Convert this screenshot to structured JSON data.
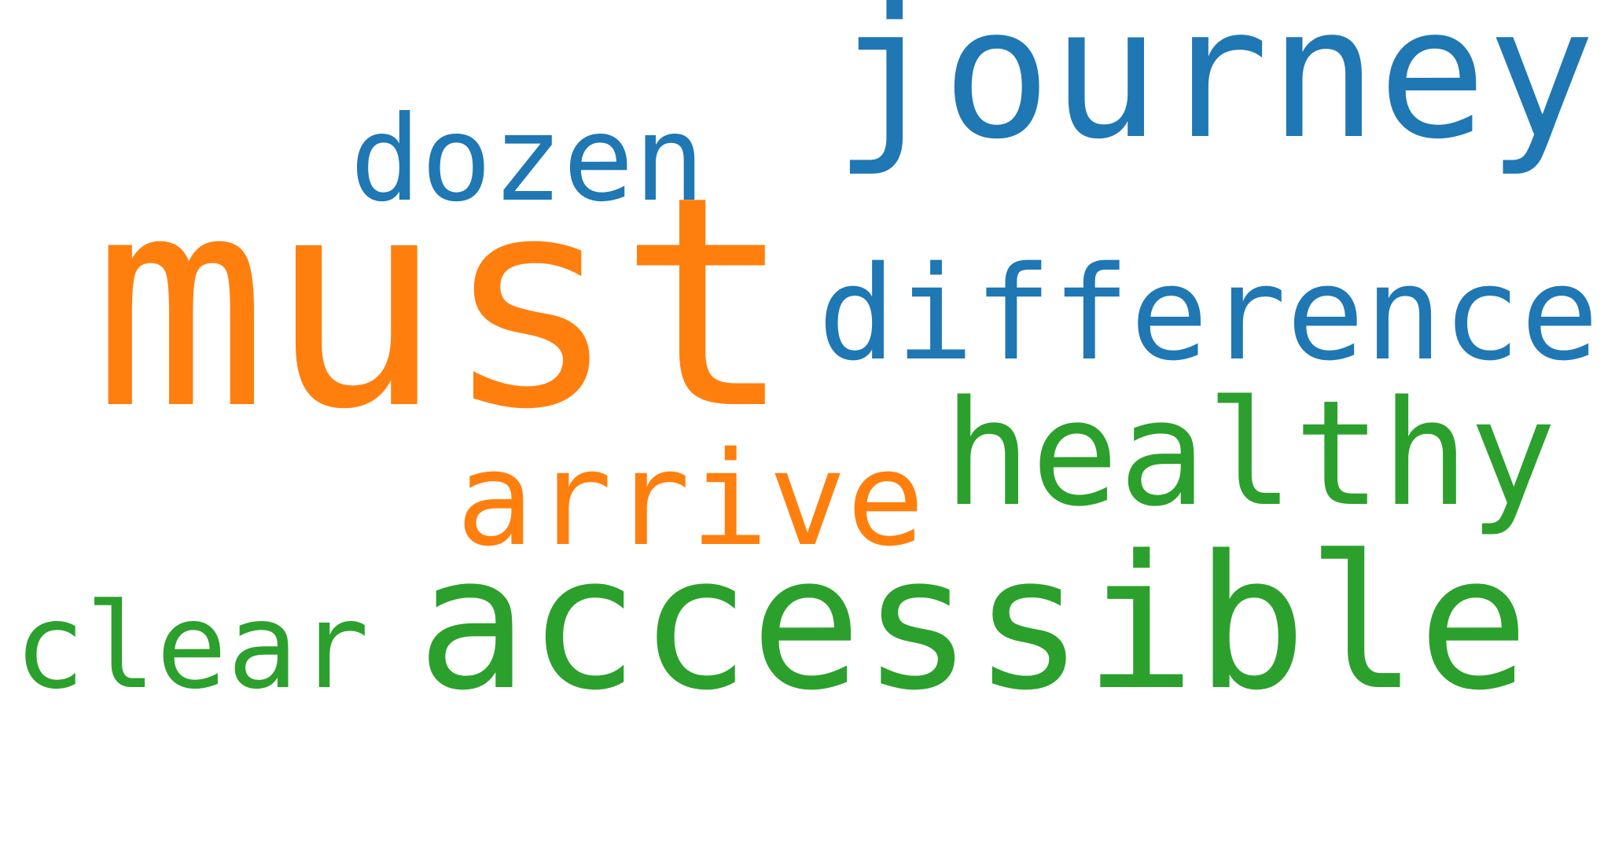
{
  "colors": {
    "blue": "#1f77b4",
    "orange": "#ff7f0e",
    "green": "#2ca02c",
    "background": "#ffffff"
  },
  "words": [
    {
      "text": "journey",
      "color": "#1f77b4"
    },
    {
      "text": "dozen",
      "color": "#1f77b4"
    },
    {
      "text": "must",
      "color": "#ff7f0e"
    },
    {
      "text": "difference",
      "color": "#1f77b4"
    },
    {
      "text": "healthy",
      "color": "#2ca02c"
    },
    {
      "text": "arrive",
      "color": "#ff7f0e"
    },
    {
      "text": "clear",
      "color": "#2ca02c"
    },
    {
      "text": "accessible",
      "color": "#2ca02c"
    }
  ]
}
